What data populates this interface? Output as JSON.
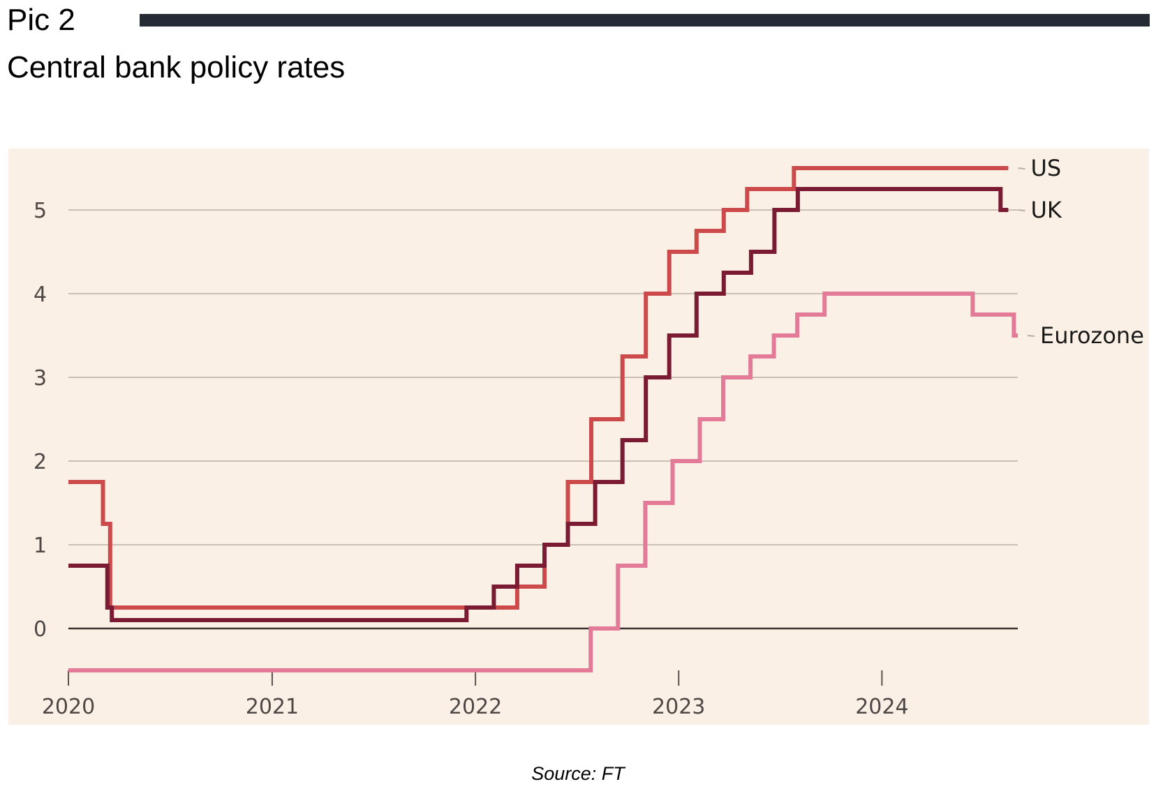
{
  "header": {
    "pic_label": "Pic 2",
    "title": "Central bank policy rates"
  },
  "footer": {
    "source": "Source: FT"
  },
  "colors": {
    "background": "#fbf0e5",
    "grid": "#cbbfb3",
    "zero_line": "#3a3330",
    "us": "#cc4a4a",
    "uk": "#7a1a33",
    "eurozone": "#e37a98",
    "top_rule": "#262a33"
  },
  "chart_data": {
    "type": "line",
    "title": "Central bank policy rates",
    "xlabel": "",
    "ylabel": "",
    "x_ticks": [
      "2020",
      "2021",
      "2022",
      "2023",
      "2024"
    ],
    "y_ticks": [
      "0",
      "1",
      "2",
      "3",
      "4",
      "5"
    ],
    "xlim": [
      "2020-01-01",
      "2024-09-01"
    ],
    "ylim": [
      -0.5,
      5.5
    ],
    "grid": true,
    "legend": "direct labels at right end of each line",
    "series": [
      {
        "name": "US",
        "step": true,
        "points": [
          [
            "2020-01-01",
            1.75
          ],
          [
            "2020-03-03",
            1.25
          ],
          [
            "2020-03-16",
            0.25
          ],
          [
            "2022-03-17",
            0.5
          ],
          [
            "2022-05-05",
            1.0
          ],
          [
            "2022-06-16",
            1.75
          ],
          [
            "2022-07-28",
            2.5
          ],
          [
            "2022-09-22",
            3.25
          ],
          [
            "2022-11-03",
            4.0
          ],
          [
            "2022-12-15",
            4.5
          ],
          [
            "2023-02-02",
            4.75
          ],
          [
            "2023-03-23",
            5.0
          ],
          [
            "2023-05-04",
            5.25
          ],
          [
            "2023-07-27",
            5.5
          ],
          [
            "2024-08-15",
            5.5
          ]
        ]
      },
      {
        "name": "UK",
        "step": true,
        "points": [
          [
            "2020-01-01",
            0.75
          ],
          [
            "2020-03-11",
            0.25
          ],
          [
            "2020-03-19",
            0.1
          ],
          [
            "2021-12-16",
            0.25
          ],
          [
            "2022-02-03",
            0.5
          ],
          [
            "2022-03-17",
            0.75
          ],
          [
            "2022-05-05",
            1.0
          ],
          [
            "2022-06-16",
            1.25
          ],
          [
            "2022-08-04",
            1.75
          ],
          [
            "2022-09-22",
            2.25
          ],
          [
            "2022-11-03",
            3.0
          ],
          [
            "2022-12-15",
            3.5
          ],
          [
            "2023-02-02",
            4.0
          ],
          [
            "2023-03-23",
            4.25
          ],
          [
            "2023-05-11",
            4.5
          ],
          [
            "2023-06-22",
            5.0
          ],
          [
            "2023-08-03",
            5.25
          ],
          [
            "2024-08-01",
            5.0
          ],
          [
            "2024-08-15",
            5.0
          ]
        ]
      },
      {
        "name": "Eurozone",
        "step": true,
        "points": [
          [
            "2020-01-01",
            -0.5
          ],
          [
            "2022-07-27",
            0.0
          ],
          [
            "2022-09-14",
            0.75
          ],
          [
            "2022-11-02",
            1.5
          ],
          [
            "2022-12-21",
            2.0
          ],
          [
            "2023-02-08",
            2.5
          ],
          [
            "2023-03-22",
            3.0
          ],
          [
            "2023-05-10",
            3.25
          ],
          [
            "2023-06-21",
            3.5
          ],
          [
            "2023-08-02",
            3.75
          ],
          [
            "2023-09-20",
            4.0
          ],
          [
            "2024-06-12",
            3.75
          ],
          [
            "2024-08-25",
            3.5
          ],
          [
            "2024-09-01",
            3.5
          ]
        ]
      }
    ]
  }
}
